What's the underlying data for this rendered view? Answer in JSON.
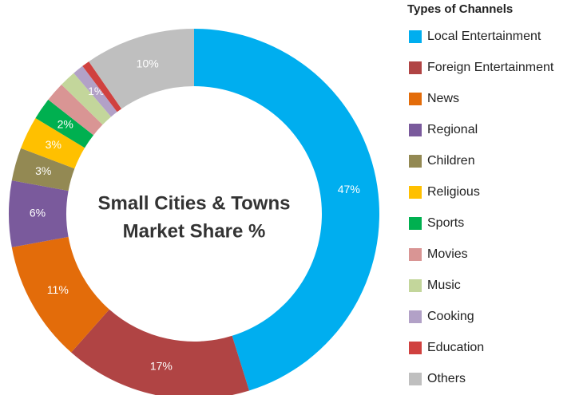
{
  "chart_data": {
    "type": "donut",
    "center_text": [
      "Small Cities & Towns",
      "Market Share %"
    ],
    "legend_title": "Types of Channels",
    "legend": "right",
    "categories": [
      "Local Entertainment",
      "Foreign Entertainment",
      "News",
      "Regional",
      "Children",
      "Religious",
      "Sports",
      "Movies",
      "Music",
      "Cooking",
      "Education",
      "Others"
    ],
    "values": [
      47,
      17,
      11,
      6,
      3,
      3,
      2,
      1.8,
      1.5,
      1,
      0.7,
      10
    ],
    "value_labels": [
      "47%",
      "17%",
      "11%",
      "6%",
      "3%",
      "3%",
      "2%",
      null,
      null,
      "1%",
      null,
      "10%"
    ],
    "colors": [
      "#00aeef",
      "#b04444",
      "#e36c0a",
      "#7a5a9c",
      "#938953",
      "#ffc000",
      "#00b050",
      "#d99594",
      "#c3d69b",
      "#b2a1c7",
      "#d0413f",
      "#bfbfbf"
    ]
  }
}
